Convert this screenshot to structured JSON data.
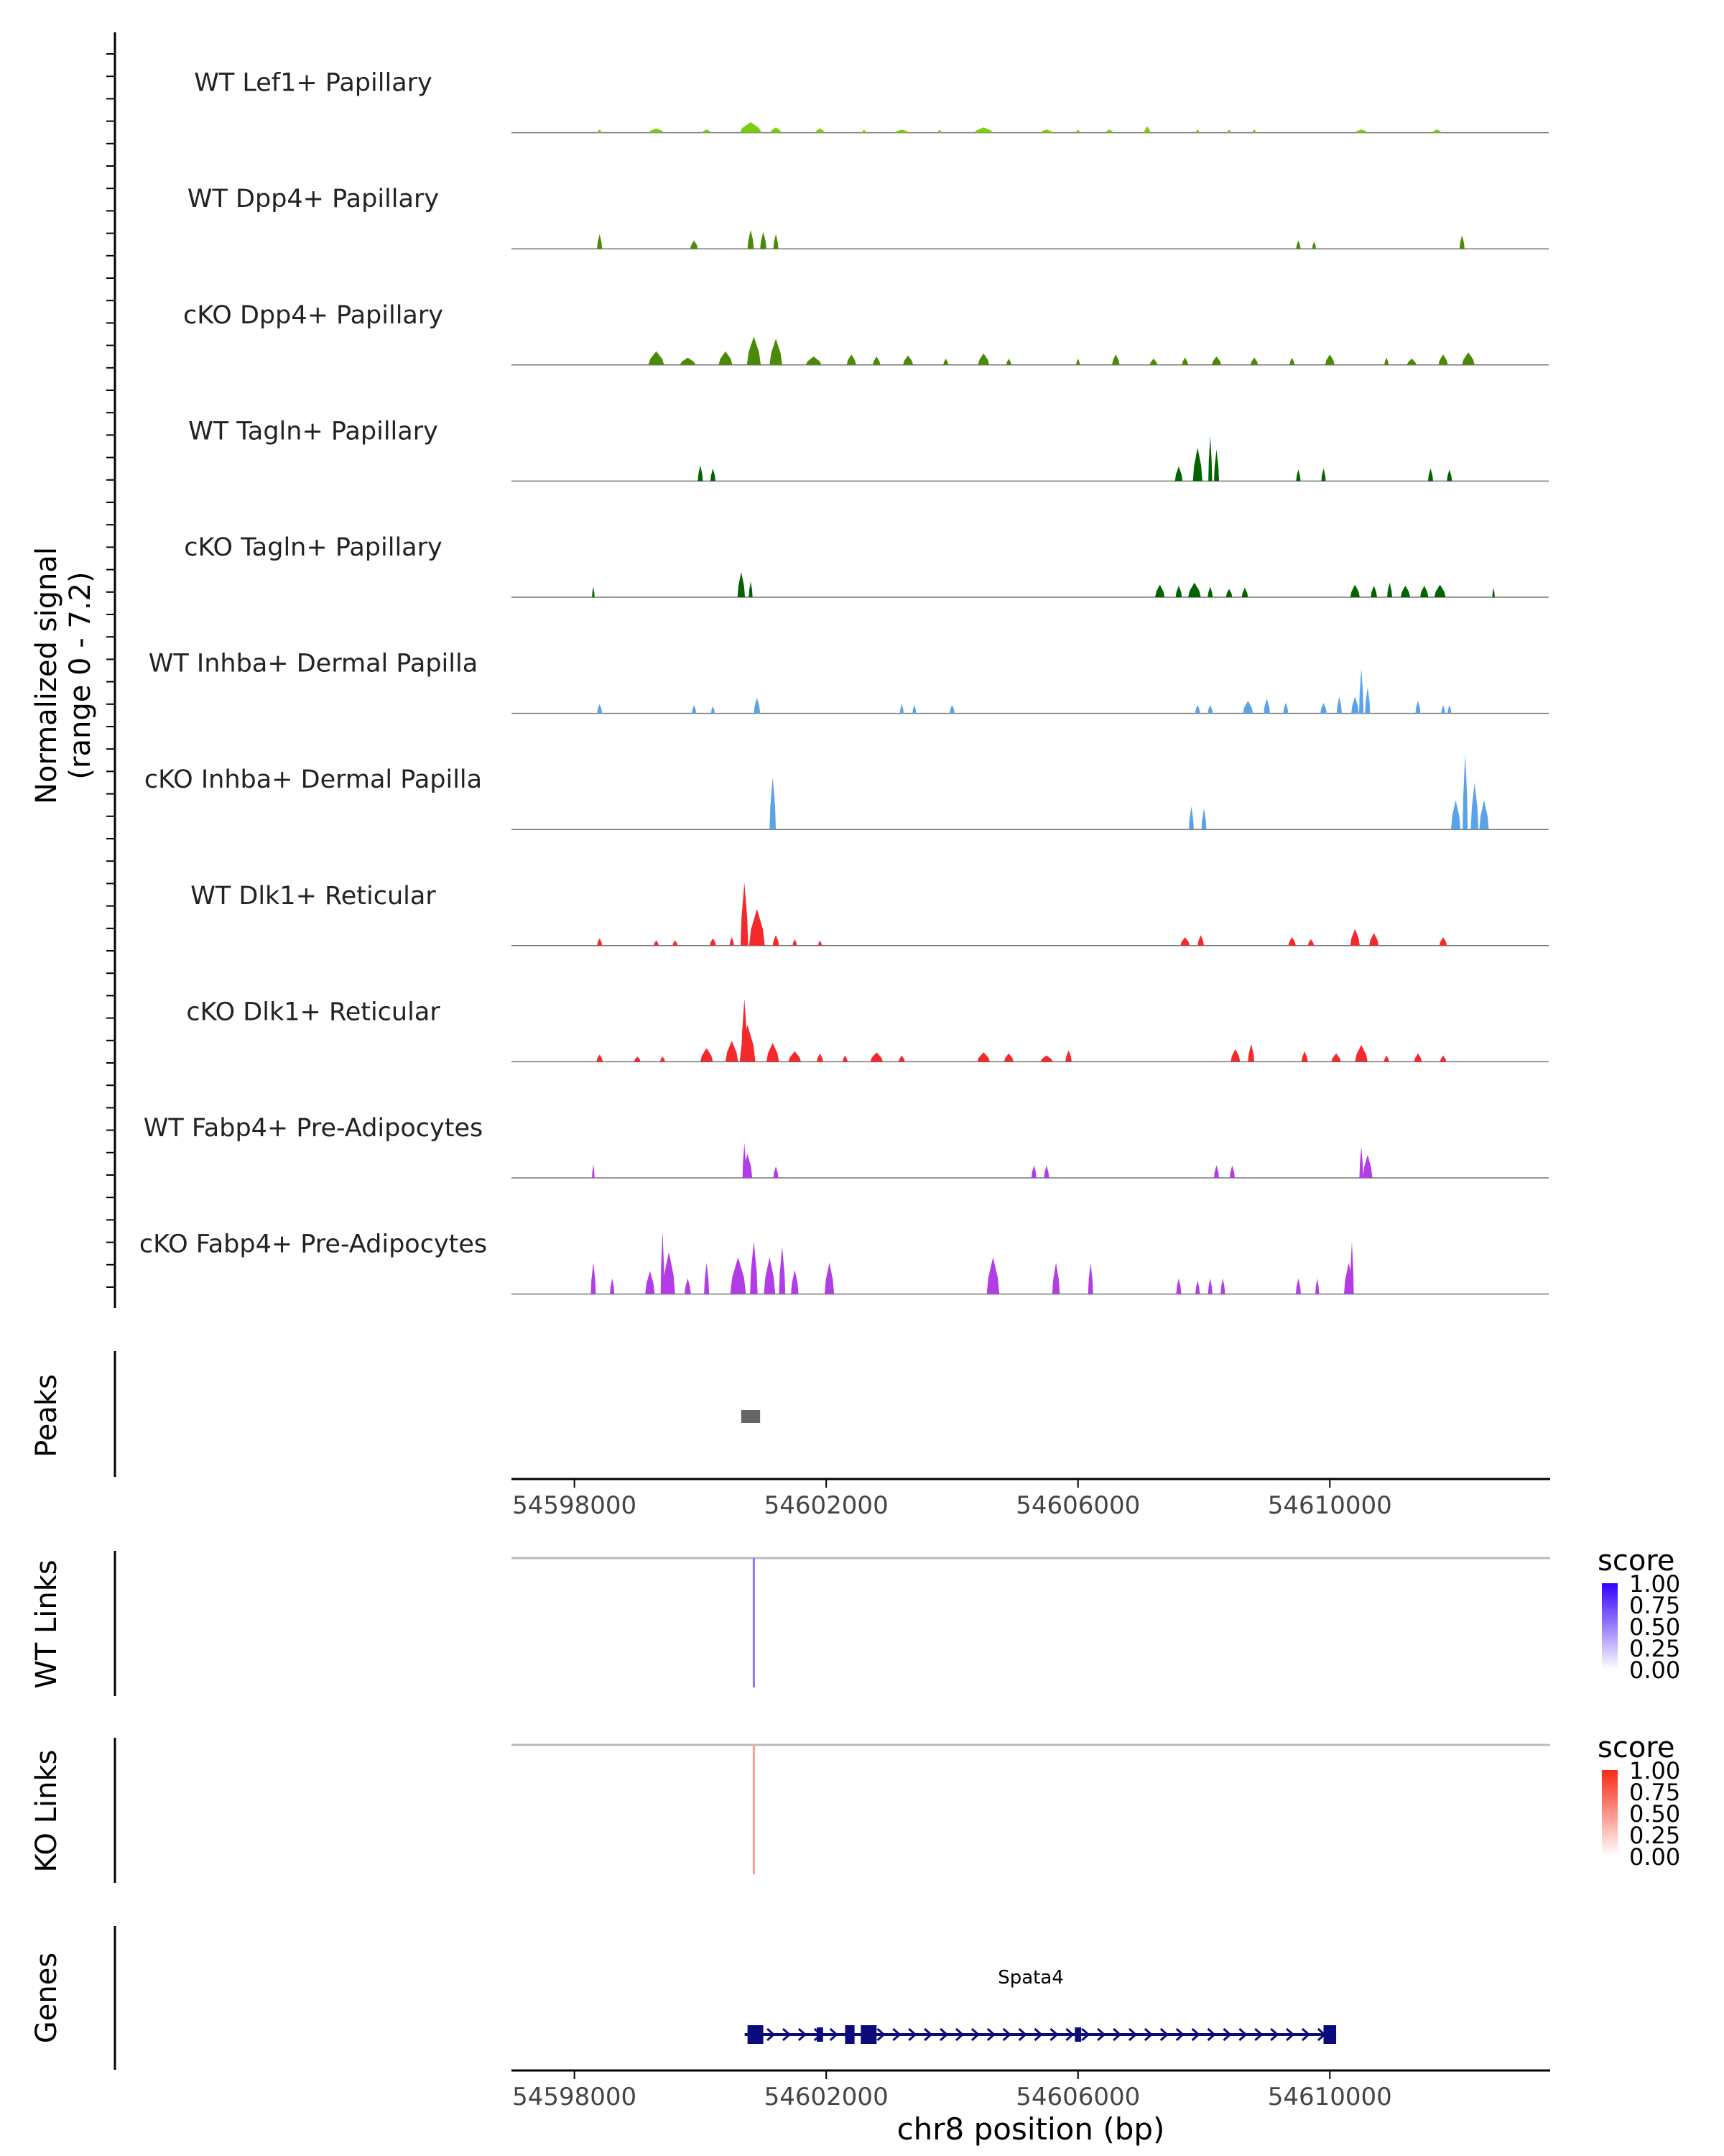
{
  "chart_data": {
    "type": "area",
    "title": "",
    "chromosome": "chr8",
    "xlabel": "chr8 position (bp)",
    "xlim": [
      54597000,
      54613500
    ],
    "xticks": [
      "54598000",
      "54602000",
      "54606000",
      "54610000"
    ],
    "xtick_values": [
      54598000,
      54602000,
      54606000,
      54610000
    ],
    "ylabel_line1": "Normalized signal",
    "ylabel_line2": "(range 0 - 7.2)",
    "signal_max": 7.2,
    "coverage_tracks": [
      {
        "name": "WT Lef1+ Papillary",
        "color": "#7CCD0F",
        "peaks": [
          [
            54598400,
            70,
            0.3
          ],
          [
            54599300,
            250,
            0.4
          ],
          [
            54600100,
            150,
            0.3
          ],
          [
            54600800,
            350,
            1.0
          ],
          [
            54601200,
            180,
            0.5
          ],
          [
            54601900,
            150,
            0.4
          ],
          [
            54602600,
            60,
            0.3
          ],
          [
            54603200,
            220,
            0.3
          ],
          [
            54603800,
            60,
            0.3
          ],
          [
            54604500,
            300,
            0.5
          ],
          [
            54605500,
            200,
            0.3
          ],
          [
            54606000,
            60,
            0.3
          ],
          [
            54606500,
            120,
            0.3
          ],
          [
            54607100,
            100,
            0.6
          ],
          [
            54607900,
            60,
            0.3
          ],
          [
            54608400,
            60,
            0.3
          ],
          [
            54608800,
            60,
            0.3
          ],
          [
            54610500,
            200,
            0.3
          ],
          [
            54611700,
            150,
            0.3
          ]
        ]
      },
      {
        "name": "WT Dpp4+ Papillary",
        "color": "#4A8A06",
        "peaks": [
          [
            54598400,
            80,
            1.4
          ],
          [
            54599900,
            120,
            0.8
          ],
          [
            54600800,
            100,
            1.8
          ],
          [
            54601000,
            100,
            1.6
          ],
          [
            54601200,
            80,
            1.4
          ],
          [
            54609500,
            70,
            0.8
          ],
          [
            54609750,
            60,
            0.7
          ],
          [
            54612100,
            80,
            1.3
          ]
        ]
      },
      {
        "name": "cKO Dpp4+ Papillary",
        "color": "#4A8A06",
        "peaks": [
          [
            54599300,
            250,
            1.3
          ],
          [
            54599800,
            250,
            0.7
          ],
          [
            54600400,
            220,
            1.3
          ],
          [
            54600850,
            220,
            2.7
          ],
          [
            54601200,
            200,
            2.5
          ],
          [
            54601800,
            250,
            0.8
          ],
          [
            54602400,
            150,
            1.0
          ],
          [
            54602800,
            120,
            0.8
          ],
          [
            54603300,
            160,
            0.9
          ],
          [
            54603900,
            80,
            0.6
          ],
          [
            54604500,
            180,
            1.1
          ],
          [
            54604900,
            80,
            0.6
          ],
          [
            54606000,
            60,
            0.6
          ],
          [
            54606600,
            120,
            1.0
          ],
          [
            54607200,
            120,
            0.6
          ],
          [
            54607700,
            100,
            0.7
          ],
          [
            54608200,
            150,
            0.8
          ],
          [
            54608800,
            120,
            0.7
          ],
          [
            54609400,
            80,
            0.7
          ],
          [
            54610000,
            150,
            1.0
          ],
          [
            54610900,
            70,
            0.7
          ],
          [
            54611300,
            150,
            0.6
          ],
          [
            54611800,
            150,
            1.0
          ],
          [
            54612200,
            200,
            1.2
          ]
        ]
      },
      {
        "name": "WT Tagln+ Papillary",
        "color": "#006400",
        "peaks": [
          [
            54600000,
            80,
            1.5
          ],
          [
            54600200,
            80,
            1.2
          ],
          [
            54607600,
            120,
            1.4
          ],
          [
            54607900,
            150,
            3.2
          ],
          [
            54608100,
            60,
            4.3
          ],
          [
            54608200,
            80,
            3.0
          ],
          [
            54609500,
            70,
            1.1
          ],
          [
            54609900,
            70,
            1.2
          ],
          [
            54611600,
            80,
            1.2
          ],
          [
            54611900,
            80,
            1.1
          ]
        ]
      },
      {
        "name": "cKO Tagln+ Papillary",
        "color": "#006400",
        "peaks": [
          [
            54598300,
            40,
            1.0
          ],
          [
            54600650,
            120,
            2.4
          ],
          [
            54600800,
            60,
            1.5
          ],
          [
            54607300,
            150,
            1.2
          ],
          [
            54607600,
            100,
            1.1
          ],
          [
            54607850,
            200,
            1.4
          ],
          [
            54608100,
            80,
            1.0
          ],
          [
            54608400,
            100,
            0.8
          ],
          [
            54608650,
            100,
            0.9
          ],
          [
            54610400,
            150,
            1.2
          ],
          [
            54610700,
            100,
            1.1
          ],
          [
            54610950,
            80,
            1.4
          ],
          [
            54611200,
            150,
            1.1
          ],
          [
            54611500,
            130,
            1.1
          ],
          [
            54611750,
            180,
            1.2
          ],
          [
            54612600,
            40,
            0.9
          ]
        ]
      },
      {
        "name": "WT Inhba+ Dermal Papilla",
        "color": "#5BA3E8",
        "peaks": [
          [
            54598400,
            80,
            0.9
          ],
          [
            54599900,
            70,
            0.8
          ],
          [
            54600200,
            60,
            0.7
          ],
          [
            54600900,
            100,
            1.5
          ],
          [
            54603200,
            60,
            0.9
          ],
          [
            54603400,
            60,
            0.8
          ],
          [
            54604000,
            80,
            0.8
          ],
          [
            54607900,
            80,
            0.8
          ],
          [
            54608100,
            80,
            0.8
          ],
          [
            54608700,
            160,
            1.2
          ],
          [
            54609000,
            100,
            1.4
          ],
          [
            54609300,
            80,
            1.0
          ],
          [
            54609900,
            100,
            1.0
          ],
          [
            54610150,
            80,
            1.6
          ],
          [
            54610400,
            120,
            1.6
          ],
          [
            54610500,
            70,
            4.3
          ],
          [
            54610600,
            80,
            2.5
          ],
          [
            54611400,
            80,
            1.2
          ],
          [
            54611800,
            60,
            0.8
          ],
          [
            54611900,
            60,
            0.8
          ]
        ]
      },
      {
        "name": "cKO Inhba+ Dermal Papilla",
        "color": "#5BA3E8",
        "peaks": [
          [
            54601150,
            100,
            5.0
          ],
          [
            54607800,
            80,
            2.2
          ],
          [
            54608000,
            80,
            2.0
          ],
          [
            54612000,
            150,
            2.8
          ],
          [
            54612150,
            80,
            7.2
          ],
          [
            54612300,
            120,
            4.5
          ],
          [
            54612450,
            150,
            2.8
          ]
        ]
      },
      {
        "name": "WT Dlk1+ Reticular",
        "color": "#F3292B",
        "peaks": [
          [
            54598400,
            80,
            0.7
          ],
          [
            54599300,
            80,
            0.5
          ],
          [
            54599600,
            80,
            0.5
          ],
          [
            54600200,
            100,
            0.7
          ],
          [
            54600500,
            70,
            0.8
          ],
          [
            54600900,
            250,
            3.5
          ],
          [
            54600700,
            120,
            6.0
          ],
          [
            54601200,
            100,
            1.0
          ],
          [
            54601500,
            70,
            0.6
          ],
          [
            54601900,
            60,
            0.5
          ],
          [
            54607700,
            150,
            0.8
          ],
          [
            54607950,
            100,
            1.0
          ],
          [
            54609400,
            120,
            0.8
          ],
          [
            54609700,
            100,
            0.6
          ],
          [
            54610400,
            150,
            1.6
          ],
          [
            54610700,
            150,
            1.2
          ],
          [
            54611800,
            120,
            0.8
          ]
        ]
      },
      {
        "name": "cKO Dlk1+ Reticular",
        "color": "#F3292B",
        "peaks": [
          [
            54598400,
            100,
            0.7
          ],
          [
            54599000,
            100,
            0.5
          ],
          [
            54599400,
            80,
            0.5
          ],
          [
            54600100,
            200,
            1.3
          ],
          [
            54600500,
            200,
            2.0
          ],
          [
            54600750,
            250,
            3.5
          ],
          [
            54600700,
            100,
            6.0
          ],
          [
            54601150,
            200,
            1.8
          ],
          [
            54601500,
            200,
            1.0
          ],
          [
            54601900,
            100,
            0.8
          ],
          [
            54602300,
            80,
            0.6
          ],
          [
            54602800,
            200,
            0.9
          ],
          [
            54603200,
            100,
            0.6
          ],
          [
            54604500,
            200,
            0.9
          ],
          [
            54604900,
            150,
            0.8
          ],
          [
            54605500,
            200,
            0.6
          ],
          [
            54605850,
            100,
            1.1
          ],
          [
            54608500,
            150,
            1.2
          ],
          [
            54608750,
            100,
            1.7
          ],
          [
            54609600,
            100,
            1.0
          ],
          [
            54610100,
            150,
            0.8
          ],
          [
            54610500,
            200,
            1.6
          ],
          [
            54610900,
            80,
            0.6
          ],
          [
            54611400,
            120,
            0.8
          ],
          [
            54611800,
            100,
            0.6
          ]
        ]
      },
      {
        "name": "WT Fabp4+ Pre-Adipocytes",
        "color": "#B23DE7",
        "peaks": [
          [
            54598300,
            40,
            1.3
          ],
          [
            54600750,
            150,
            2.3
          ],
          [
            54600700,
            60,
            3.3
          ],
          [
            54601200,
            80,
            1.1
          ],
          [
            54605300,
            80,
            1.2
          ],
          [
            54605500,
            80,
            1.2
          ],
          [
            54608200,
            80,
            1.2
          ],
          [
            54608450,
            80,
            1.2
          ],
          [
            54610600,
            150,
            2.2
          ],
          [
            54610500,
            60,
            3.0
          ]
        ]
      },
      {
        "name": "cKO Fabp4+ Pre-Adipocytes",
        "color": "#B23DE7",
        "peaks": [
          [
            54598300,
            80,
            3.0
          ],
          [
            54598600,
            70,
            1.5
          ],
          [
            54599200,
            150,
            2.2
          ],
          [
            54599500,
            200,
            4.0
          ],
          [
            54599400,
            60,
            6.0
          ],
          [
            54599800,
            100,
            1.5
          ],
          [
            54600100,
            80,
            3.0
          ],
          [
            54600600,
            250,
            3.5
          ],
          [
            54600850,
            120,
            5.0
          ],
          [
            54601100,
            180,
            3.5
          ],
          [
            54601300,
            100,
            4.5
          ],
          [
            54601500,
            120,
            2.3
          ],
          [
            54602050,
            150,
            3.0
          ],
          [
            54604650,
            200,
            3.5
          ],
          [
            54605650,
            120,
            3.0
          ],
          [
            54606200,
            80,
            3.0
          ],
          [
            54607600,
            80,
            1.5
          ],
          [
            54607900,
            70,
            1.3
          ],
          [
            54608100,
            70,
            1.5
          ],
          [
            54608300,
            70,
            1.5
          ],
          [
            54609500,
            80,
            1.5
          ],
          [
            54609800,
            60,
            1.5
          ],
          [
            54610300,
            150,
            3.0
          ],
          [
            54610350,
            60,
            5.0
          ]
        ]
      }
    ],
    "peaks_track": {
      "label": "Peaks",
      "color": "#666666",
      "regions": [
        [
          54600650,
          54600950
        ]
      ]
    },
    "link_tracks": [
      {
        "label": "WT Links",
        "legend_title": "score",
        "low_color": "#FFFFFF",
        "high_color": "#3300FF",
        "ticks": [
          "1.00",
          "0.75",
          "0.50",
          "0.25",
          "0.00"
        ],
        "links": [
          {
            "pos": 54600850,
            "score": 0.55
          }
        ]
      },
      {
        "label": "KO Links",
        "legend_title": "score",
        "low_color": "#FFFFFF",
        "high_color": "#F92A13",
        "ticks": [
          "1.00",
          "0.75",
          "0.50",
          "0.25",
          "0.00"
        ],
        "links": [
          {
            "pos": 54600850,
            "score": 0.45
          }
        ]
      }
    ],
    "genes_track": {
      "label": "Genes",
      "gene": "Spata4",
      "color": "#0A0A7A",
      "start": 54600750,
      "end": 54610100,
      "exons": [
        [
          54600750,
          54601000
        ],
        [
          54601850,
          54601950
        ],
        [
          54602300,
          54602450
        ],
        [
          54602550,
          54602800
        ],
        [
          54605950,
          54606050
        ],
        [
          54609900,
          54610100
        ]
      ]
    }
  }
}
